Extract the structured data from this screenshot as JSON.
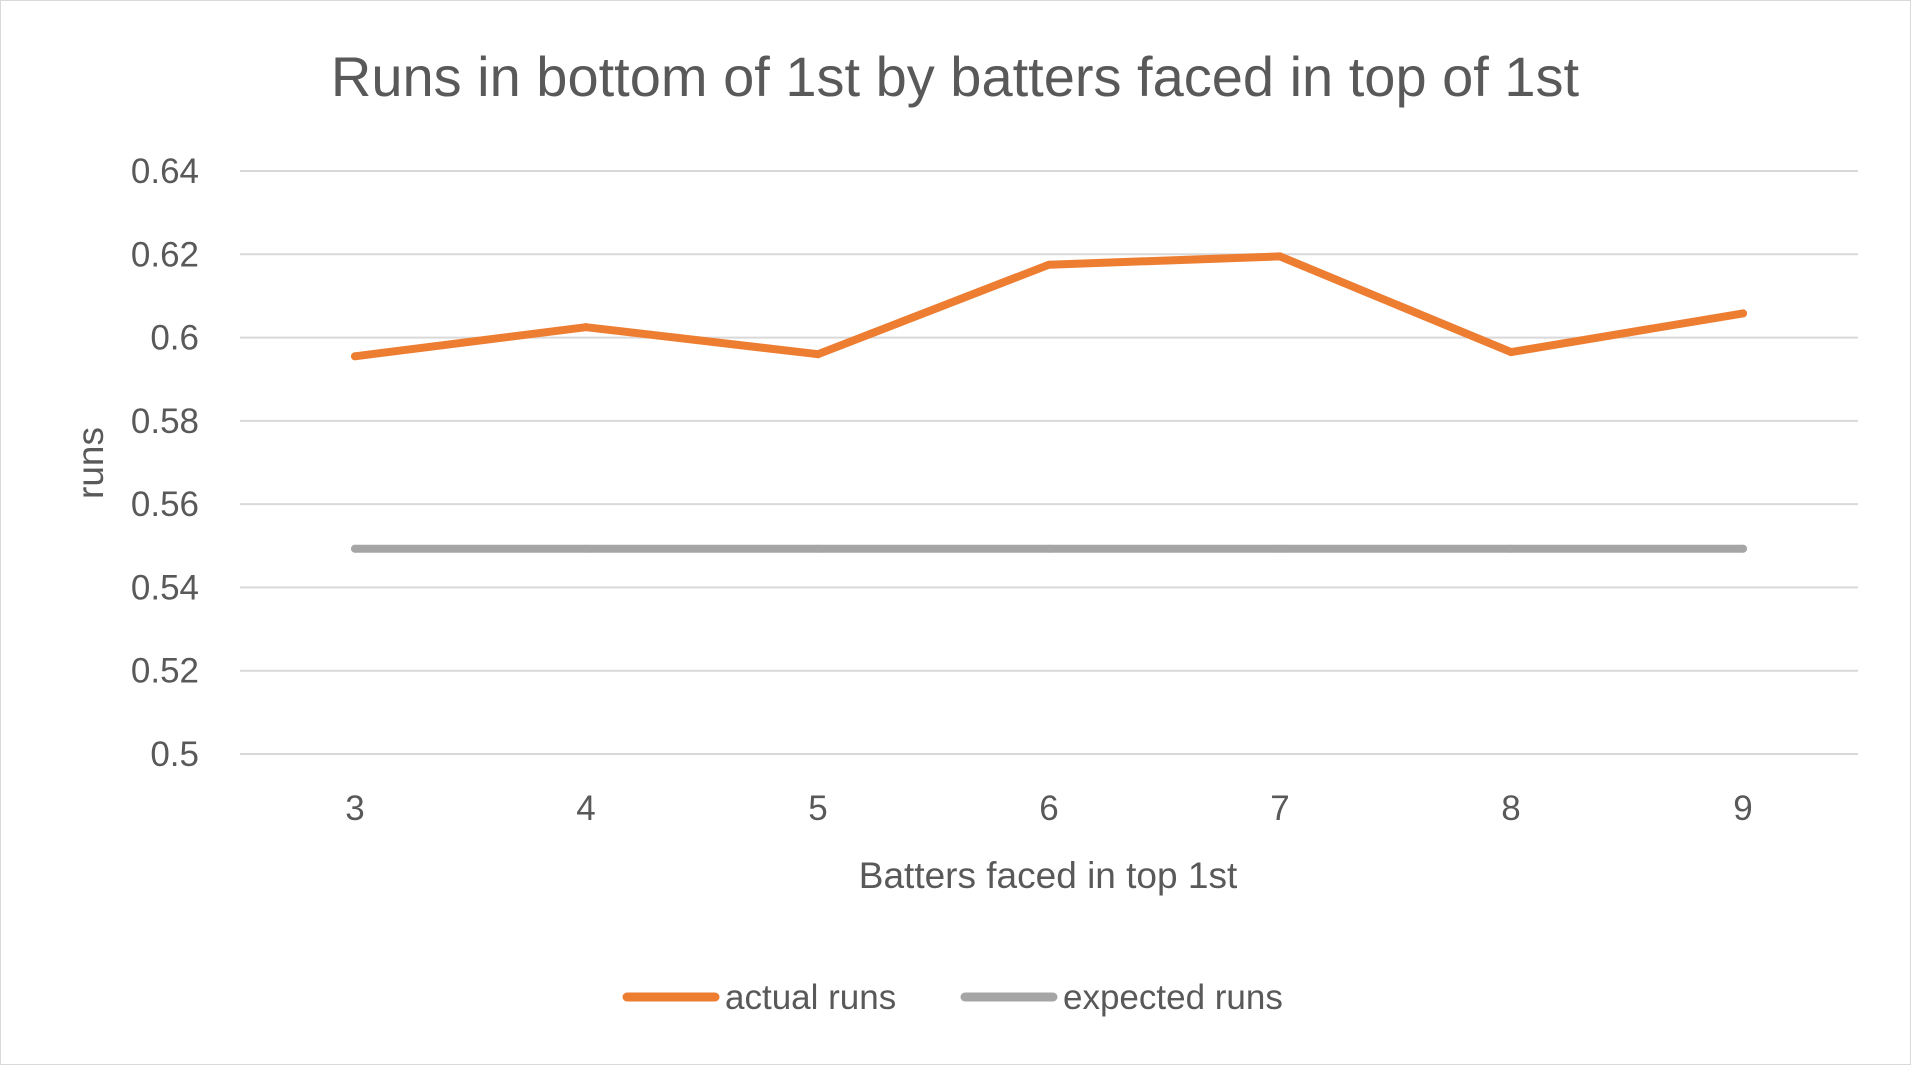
{
  "chart_data": {
    "type": "line",
    "title": "Runs in bottom of 1st by batters faced in top of 1st",
    "xlabel": "Batters faced in top 1st",
    "ylabel": "runs",
    "categories": [
      "3",
      "4",
      "5",
      "6",
      "7",
      "8",
      "9"
    ],
    "ylim": [
      0.5,
      0.64
    ],
    "yticks": [
      0.64,
      0.62,
      0.6,
      0.58,
      0.56,
      0.54,
      0.52,
      0.5
    ],
    "ytick_labels": [
      "0.64",
      "0.62",
      "0.6",
      "0.58",
      "0.56",
      "0.54",
      "0.52",
      "0.5"
    ],
    "grid": true,
    "legend_position": "bottom",
    "series": [
      {
        "name": "actual runs",
        "color": "#ed7d31",
        "values": [
          0.5955,
          0.6025,
          0.596,
          0.6175,
          0.6195,
          0.5965,
          0.6058
        ]
      },
      {
        "name": "expected runs",
        "color": "#a5a5a5",
        "values": [
          0.5493,
          0.5493,
          0.5493,
          0.5493,
          0.5493,
          0.5493,
          0.5493
        ]
      }
    ]
  }
}
